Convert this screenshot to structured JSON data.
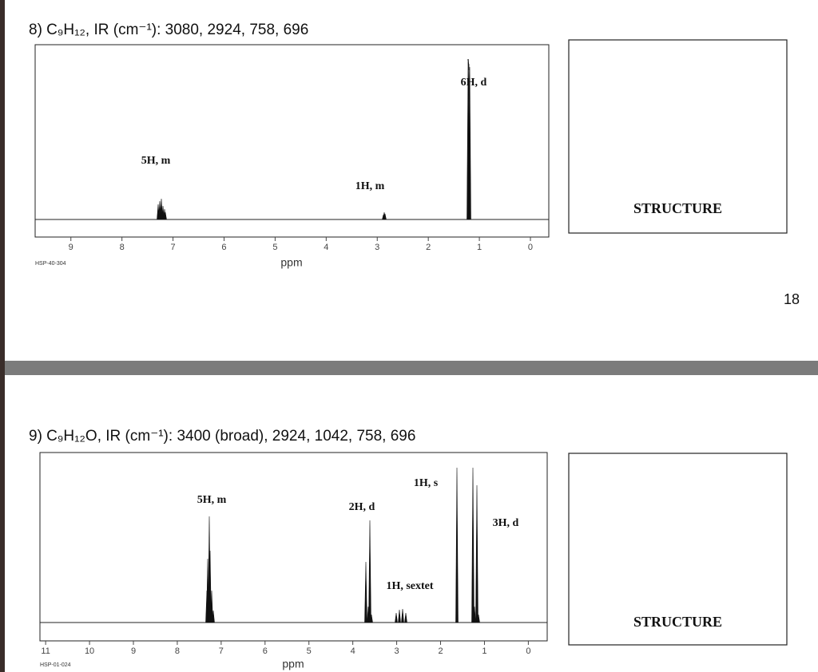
{
  "problems": [
    {
      "title": "8) C₉H₁₂, IR (cm⁻¹): 3080, 2924, 758, 696",
      "spectrum": {
        "xlim": [
          9.7,
          -0.36
        ],
        "xticks": [
          9,
          8,
          7,
          6,
          5,
          4,
          3,
          2,
          1,
          0
        ],
        "x_label": "ppm",
        "code": "HSP-40-304",
        "peak_labels": [
          "5H, m",
          "1H, m",
          "6H, d"
        ]
      },
      "structure_label": "STRUCTURE"
    },
    {
      "title": "9) C₉H₁₂O, IR (cm⁻¹): 3400 (broad), 2924, 1042, 758, 696",
      "spectrum": {
        "xlim": [
          11.13,
          -0.43
        ],
        "xticks": [
          11,
          10,
          9,
          8,
          7,
          6,
          5,
          4,
          3,
          2,
          1,
          0
        ],
        "x_label": "ppm",
        "code": "HSP-01-024",
        "peak_labels": [
          "5H, m",
          "2H, d",
          "1H, s",
          "3H, d",
          "1H, sextet"
        ]
      },
      "structure_label": "STRUCTURE"
    }
  ],
  "page_number": 18
}
